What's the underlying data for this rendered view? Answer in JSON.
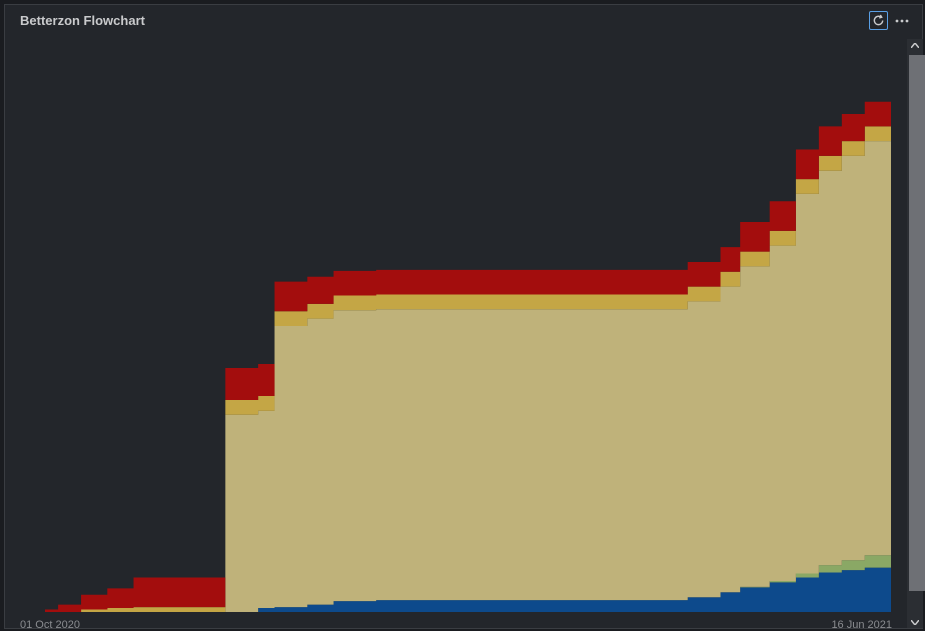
{
  "header": {
    "title": "Betterzon Flowchart",
    "refresh_icon": "refresh-icon",
    "more_icon": "more-horizontal-icon"
  },
  "axis": {
    "start_label": "01 Oct 2020",
    "end_label": "16 Jun 2021"
  },
  "chart_data": {
    "type": "area",
    "stacked": true,
    "x_start": "2020-10-01",
    "x_end": "2021-06-16",
    "grid": false,
    "legend": "none",
    "x": [
      "2020-10-01",
      "2020-10-05",
      "2020-10-12",
      "2020-10-20",
      "2020-10-28",
      "2020-11-12",
      "2020-11-25",
      "2020-12-05",
      "2020-12-10",
      "2020-12-14",
      "2020-12-20",
      "2020-12-28",
      "2021-01-10",
      "2021-02-01",
      "2021-03-01",
      "2021-04-01",
      "2021-04-15",
      "2021-04-25",
      "2021-05-01",
      "2021-05-10",
      "2021-05-18",
      "2021-05-25",
      "2021-06-01",
      "2021-06-08",
      "2021-06-16"
    ],
    "series": [
      {
        "color": "#0d4a8c",
        "values": [
          0,
          0,
          0,
          0,
          0,
          0,
          0,
          0.8,
          1,
          1,
          1.5,
          2.2,
          2.4,
          2.4,
          2.4,
          2.4,
          3,
          4,
          5,
          6,
          7,
          8,
          8.5,
          9,
          9.5
        ]
      },
      {
        "color": "#8aa865",
        "values": [
          0,
          0,
          0,
          0,
          0,
          0,
          0,
          0,
          0,
          0,
          0,
          0,
          0,
          0,
          0,
          0,
          0,
          0,
          0.1,
          0.3,
          0.8,
          1.5,
          2,
          2.5,
          3
        ]
      },
      {
        "color": "#bfb27a",
        "values": [
          0,
          0,
          0,
          0,
          0,
          0,
          40,
          40,
          57,
          57,
          58,
          59,
          59,
          59,
          59,
          59,
          60,
          62,
          65,
          68,
          77,
          80,
          82,
          84,
          86
        ]
      },
      {
        "color": "#c4a645",
        "values": [
          0,
          0,
          0.5,
          0.8,
          1,
          1,
          3,
          3,
          3,
          3,
          3,
          3,
          3,
          3,
          3,
          3,
          3,
          3,
          3,
          3,
          3,
          3,
          3,
          3,
          3
        ]
      },
      {
        "color": "#a30d0d",
        "values": [
          0.5,
          1.5,
          3,
          4,
          6,
          6,
          6.5,
          6.5,
          6,
          6,
          5.5,
          5,
          5,
          5,
          5,
          5,
          5,
          5,
          6,
          6,
          6,
          6,
          5.5,
          5,
          5
        ]
      }
    ],
    "ylim": [
      0,
      115
    ]
  }
}
